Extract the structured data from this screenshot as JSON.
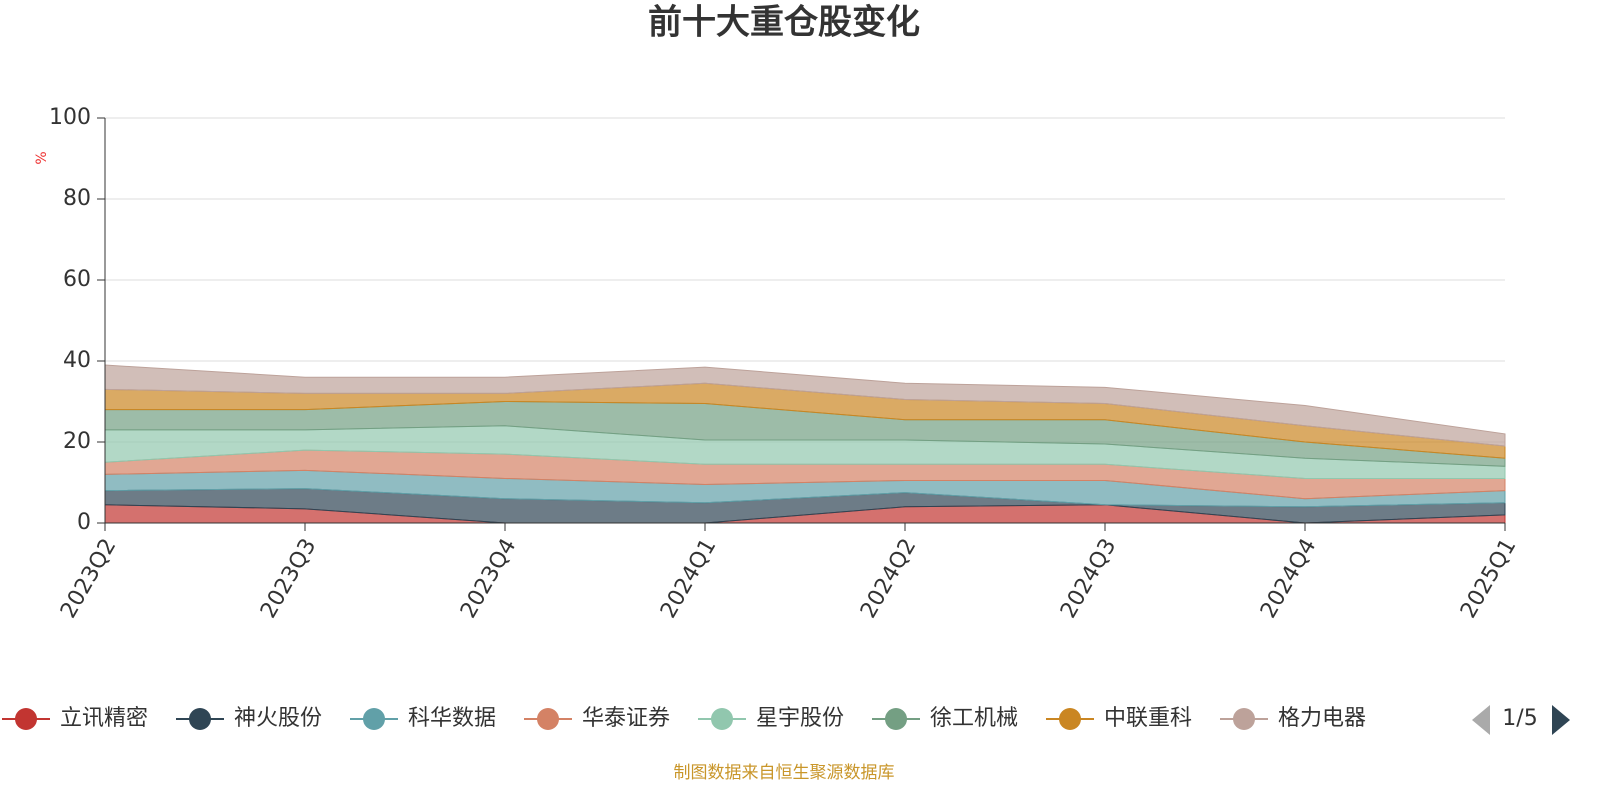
{
  "chart_data": {
    "type": "stacked-area",
    "title": "前十大重仓股变化",
    "y_label": "%",
    "categories": [
      "2023Q2",
      "2023Q3",
      "2023Q4",
      "2024Q1",
      "2024Q2",
      "2024Q3",
      "2024Q4",
      "2025Q1"
    ],
    "series": [
      {
        "name": "立讯精密",
        "color": "#c23531",
        "values": [
          4.5,
          3.5,
          0,
          0,
          4,
          4.5,
          0,
          2
        ]
      },
      {
        "name": "神火股份",
        "color": "#2f4554",
        "values": [
          3.5,
          5,
          6,
          5,
          3.5,
          0,
          4,
          3
        ]
      },
      {
        "name": "科华数据",
        "color": "#61a0a8",
        "values": [
          4,
          4.5,
          5,
          4.5,
          3,
          6,
          2,
          3
        ]
      },
      {
        "name": "华泰证券",
        "color": "#d48265",
        "values": [
          3,
          5,
          6,
          5,
          4,
          4,
          5,
          3
        ]
      },
      {
        "name": "星宇股份",
        "color": "#91c7ae",
        "values": [
          8,
          5,
          7,
          6,
          6,
          5,
          5,
          3
        ]
      },
      {
        "name": "徐工机械",
        "color": "#749f83",
        "values": [
          5,
          5,
          6,
          9,
          5,
          6,
          4,
          2
        ]
      },
      {
        "name": "中联重科",
        "color": "#ca8622",
        "values": [
          5,
          4,
          2,
          5,
          5,
          4,
          4,
          3
        ]
      },
      {
        "name": "格力电器",
        "color": "#bda29a",
        "values": [
          6,
          4,
          4,
          4,
          4,
          4,
          5,
          3
        ]
      }
    ],
    "ylim": [
      0,
      100
    ],
    "yticks": [
      0,
      20,
      40,
      60,
      80,
      100
    ],
    "grid": true,
    "legend_page": "1/5",
    "source": "制图数据来自恒生聚源数据库"
  }
}
